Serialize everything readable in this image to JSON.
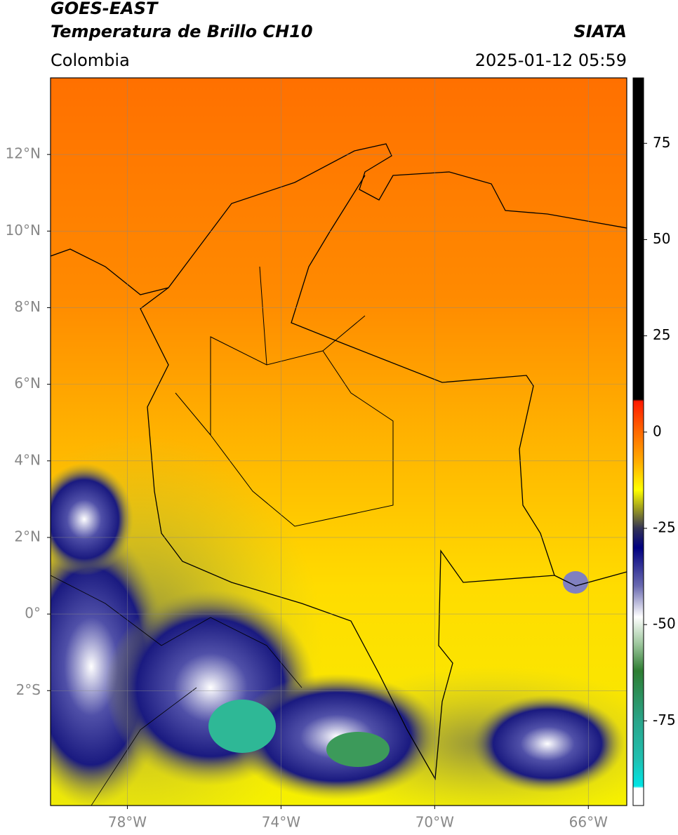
{
  "chart_data": {
    "type": "map",
    "title": "GOES-EAST",
    "subtitle": "Temperatura de Brillo CH10",
    "region": "Colombia",
    "source": "SIATA",
    "timestamp": "2025-01-12 05:59",
    "xlim": [
      -80,
      -65
    ],
    "ylim": [
      -5,
      14
    ],
    "xticks": [
      {
        "value": -78,
        "label": "78°W"
      },
      {
        "value": -74,
        "label": "74°W"
      },
      {
        "value": -70,
        "label": "70°W"
      },
      {
        "value": -66,
        "label": "66°W"
      }
    ],
    "yticks": [
      {
        "value": 12,
        "label": "12°N"
      },
      {
        "value": 10,
        "label": "10°N"
      },
      {
        "value": 8,
        "label": "8°N"
      },
      {
        "value": 6,
        "label": "6°N"
      },
      {
        "value": 4,
        "label": "4°N"
      },
      {
        "value": 2,
        "label": "2°N"
      },
      {
        "value": 0,
        "label": "0°"
      },
      {
        "value": -2,
        "label": "2°S"
      }
    ],
    "grid": true,
    "colorbar": {
      "clim": [
        -97,
        92
      ],
      "ticks": [
        75,
        50,
        25,
        0,
        -25,
        -50,
        -75
      ],
      "stops": [
        {
          "value": 92,
          "color": "#000000"
        },
        {
          "value": 8.5,
          "color": "#000000"
        },
        {
          "value": 8,
          "color": "#ff1a00"
        },
        {
          "value": 0,
          "color": "#ff6a00"
        },
        {
          "value": -8,
          "color": "#ffb000"
        },
        {
          "value": -15,
          "color": "#ffff00"
        },
        {
          "value": -20,
          "color": "#9a9a20"
        },
        {
          "value": -25,
          "color": "#333355"
        },
        {
          "value": -30,
          "color": "#000080"
        },
        {
          "value": -40,
          "color": "#6a6ab0"
        },
        {
          "value": -48,
          "color": "#ffffff"
        },
        {
          "value": -55,
          "color": "#9ec79e"
        },
        {
          "value": -62,
          "color": "#2e7d32"
        },
        {
          "value": -75,
          "color": "#2aa58a"
        },
        {
          "value": -85,
          "color": "#20c0b0"
        },
        {
          "value": -92,
          "color": "#00e5e5"
        },
        {
          "value": -92.5,
          "color": "#ffffff"
        },
        {
          "value": -97,
          "color": "#ffffff"
        }
      ]
    }
  }
}
